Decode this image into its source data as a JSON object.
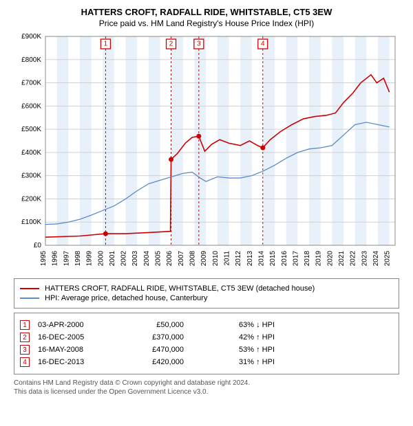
{
  "title_line1": "HATTERS CROFT, RADFALL RIDE, WHITSTABLE, CT5 3EW",
  "title_line2": "Price paid vs. HM Land Registry's House Price Index (HPI)",
  "chart": {
    "type": "line",
    "background_color": "#ffffff",
    "grid_color": "#d0d0d0",
    "band_color": "#e8f0fa",
    "x_start": 1995,
    "x_end": 2025.5,
    "x_ticks": [
      1995,
      1996,
      1997,
      1998,
      1999,
      2000,
      2001,
      2002,
      2003,
      2004,
      2005,
      2006,
      2007,
      2008,
      2009,
      2010,
      2011,
      2012,
      2013,
      2014,
      2015,
      2016,
      2017,
      2018,
      2019,
      2020,
      2021,
      2022,
      2023,
      2024,
      2025
    ],
    "y_min": 0,
    "y_max": 900000,
    "y_ticks": [
      0,
      100000,
      200000,
      300000,
      400000,
      500000,
      600000,
      700000,
      800000,
      900000
    ],
    "y_tick_fmt": [
      "£0",
      "£100K",
      "£200K",
      "£300K",
      "£400K",
      "£500K",
      "£600K",
      "£700K",
      "£800K",
      "£900K"
    ],
    "series": [
      {
        "name": "property",
        "color": "#cc0000",
        "width": 1.6,
        "points": [
          [
            1995,
            35000
          ],
          [
            1998,
            40000
          ],
          [
            2000.25,
            50000
          ],
          [
            2000.26,
            50000
          ],
          [
            2002,
            50000
          ],
          [
            2004,
            55000
          ],
          [
            2005.9,
            60000
          ],
          [
            2005.96,
            370000
          ],
          [
            2006.5,
            395000
          ],
          [
            2007.2,
            440000
          ],
          [
            2007.8,
            465000
          ],
          [
            2008.38,
            470000
          ],
          [
            2008.9,
            405000
          ],
          [
            2009.5,
            435000
          ],
          [
            2010.2,
            455000
          ],
          [
            2011,
            440000
          ],
          [
            2012,
            430000
          ],
          [
            2012.8,
            450000
          ],
          [
            2013.5,
            430000
          ],
          [
            2013.96,
            420000
          ],
          [
            2014.6,
            455000
          ],
          [
            2015.5,
            490000
          ],
          [
            2016.5,
            520000
          ],
          [
            2017.5,
            545000
          ],
          [
            2018.5,
            555000
          ],
          [
            2019.5,
            560000
          ],
          [
            2020.3,
            570000
          ],
          [
            2021,
            615000
          ],
          [
            2021.8,
            655000
          ],
          [
            2022.5,
            700000
          ],
          [
            2023.4,
            735000
          ],
          [
            2023.9,
            700000
          ],
          [
            2024.5,
            720000
          ],
          [
            2025,
            660000
          ]
        ]
      },
      {
        "name": "hpi",
        "color": "#5b8bc9",
        "width": 1.3,
        "points": [
          [
            1995,
            90000
          ],
          [
            1996,
            92000
          ],
          [
            1997,
            100000
          ],
          [
            1998,
            112000
          ],
          [
            1999,
            130000
          ],
          [
            2000,
            150000
          ],
          [
            2001,
            170000
          ],
          [
            2002,
            200000
          ],
          [
            2003,
            235000
          ],
          [
            2004,
            265000
          ],
          [
            2005,
            280000
          ],
          [
            2006,
            295000
          ],
          [
            2007,
            310000
          ],
          [
            2007.8,
            315000
          ],
          [
            2008.5,
            290000
          ],
          [
            2009,
            275000
          ],
          [
            2010,
            295000
          ],
          [
            2011,
            290000
          ],
          [
            2012,
            290000
          ],
          [
            2013,
            300000
          ],
          [
            2014,
            320000
          ],
          [
            2015,
            345000
          ],
          [
            2016,
            375000
          ],
          [
            2017,
            400000
          ],
          [
            2018,
            415000
          ],
          [
            2019,
            420000
          ],
          [
            2020,
            430000
          ],
          [
            2021,
            475000
          ],
          [
            2022,
            520000
          ],
          [
            2023,
            530000
          ],
          [
            2024,
            520000
          ],
          [
            2025,
            510000
          ]
        ]
      }
    ],
    "markers": [
      {
        "n": "1",
        "x": 2000.25,
        "y": 50000
      },
      {
        "n": "2",
        "x": 2005.96,
        "y": 370000
      },
      {
        "n": "3",
        "x": 2008.38,
        "y": 470000
      },
      {
        "n": "4",
        "x": 2013.96,
        "y": 420000
      }
    ],
    "marker_line_color": "#cc0000",
    "marker_line_dash": "3,3"
  },
  "legend": [
    {
      "color": "#cc0000",
      "label": "HATTERS CROFT, RADFALL RIDE, WHITSTABLE, CT5 3EW (detached house)"
    },
    {
      "color": "#5b8bc9",
      "label": "HPI: Average price, detached house, Canterbury"
    }
  ],
  "transactions": [
    {
      "n": "1",
      "date": "03-APR-2000",
      "price": "£50,000",
      "pct": "63% ↓ HPI"
    },
    {
      "n": "2",
      "date": "16-DEC-2005",
      "price": "£370,000",
      "pct": "42% ↑ HPI"
    },
    {
      "n": "3",
      "date": "16-MAY-2008",
      "price": "£470,000",
      "pct": "53% ↑ HPI"
    },
    {
      "n": "4",
      "date": "16-DEC-2013",
      "price": "£420,000",
      "pct": "31% ↑ HPI"
    }
  ],
  "footnote_line1": "Contains HM Land Registry data © Crown copyright and database right 2024.",
  "footnote_line2": "This data is licensed under the Open Government Licence v3.0."
}
